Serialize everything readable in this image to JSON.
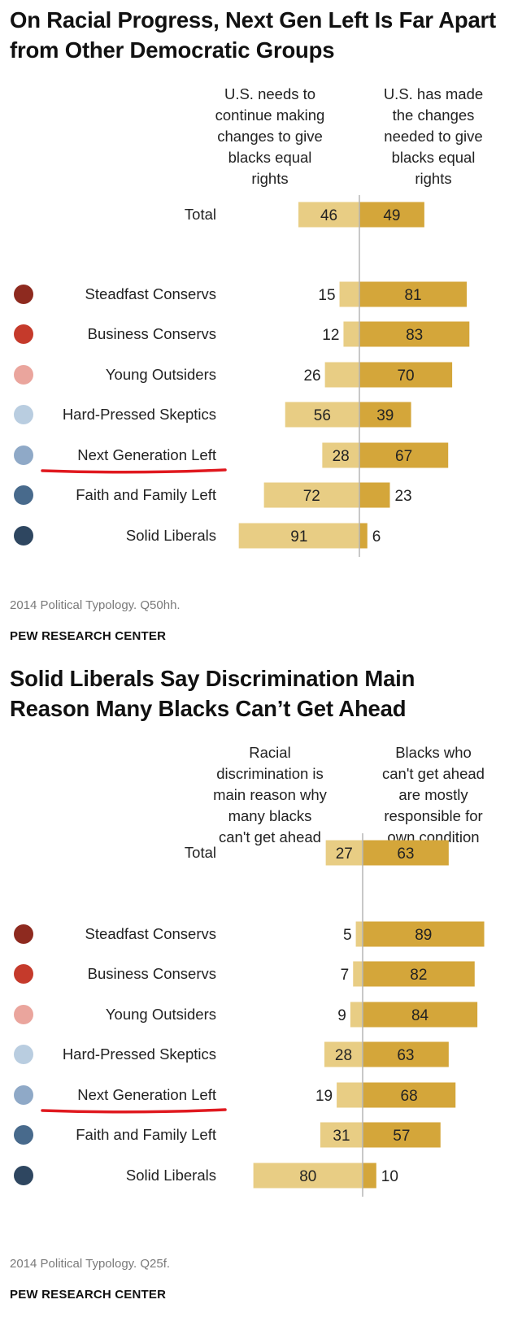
{
  "colors": {
    "light_bar": "#e8cd84",
    "dark_bar": "#d4a63a",
    "axis_line": "#b5b5b5",
    "underline": "#e0191f"
  },
  "chart_data": [
    {
      "type": "bar",
      "orientation": "horizontal-diverging",
      "title": "On Racial Progress, Next Gen Left Is Far Apart from Other Democratic Groups",
      "left_label": "U.S. needs to\ncontinue making\nchanges to give\nblacks equal\nrights",
      "right_label": "U.S. has made\nthe changes\nneeded to give\nblacks equal\nrights",
      "categories": [
        "Total",
        "Steadfast Conservs",
        "Business Conservs",
        "Young Outsiders",
        "Hard-Pressed Skeptics",
        "Next Generation Left",
        "Faith and Family Left",
        "Solid Liberals"
      ],
      "marker_colors": [
        null,
        "#8e2a1f",
        "#c53a2b",
        "#eaa59d",
        "#b9cde0",
        "#8fa9c7",
        "#486a8c",
        "#2e4660"
      ],
      "highlighted": "Next Generation Left",
      "series": [
        {
          "values": [
            46,
            15,
            12,
            26,
            56,
            28,
            72,
            91
          ]
        },
        {
          "values": [
            49,
            81,
            83,
            70,
            39,
            67,
            23,
            6
          ]
        }
      ],
      "note": "2014 Political Typology. Q50hh.",
      "source": "PEW RESEARCH CENTER"
    },
    {
      "type": "bar",
      "orientation": "horizontal-diverging",
      "title": "Solid Liberals Say Discrimination Main Reason Many Blacks Can’t Get Ahead",
      "left_label": "Racial\ndiscrimination is\nmain reason why\nmany blacks\ncan't get ahead",
      "right_label": "Blacks who\ncan't get ahead\nare mostly\nresponsible for\nown condition",
      "categories": [
        "Total",
        "Steadfast Conservs",
        "Business Conservs",
        "Young Outsiders",
        "Hard-Pressed Skeptics",
        "Next Generation Left",
        "Faith and Family Left",
        "Solid Liberals"
      ],
      "marker_colors": [
        null,
        "#8e2a1f",
        "#c53a2b",
        "#eaa59d",
        "#b9cde0",
        "#8fa9c7",
        "#486a8c",
        "#2e4660"
      ],
      "highlighted": "Next Generation Left",
      "series": [
        {
          "values": [
            27,
            5,
            7,
            9,
            28,
            19,
            31,
            80
          ]
        },
        {
          "values": [
            63,
            89,
            82,
            84,
            63,
            68,
            57,
            10
          ]
        }
      ],
      "note": "2014 Political Typology. Q25f.",
      "source": "PEW RESEARCH CENTER"
    }
  ]
}
